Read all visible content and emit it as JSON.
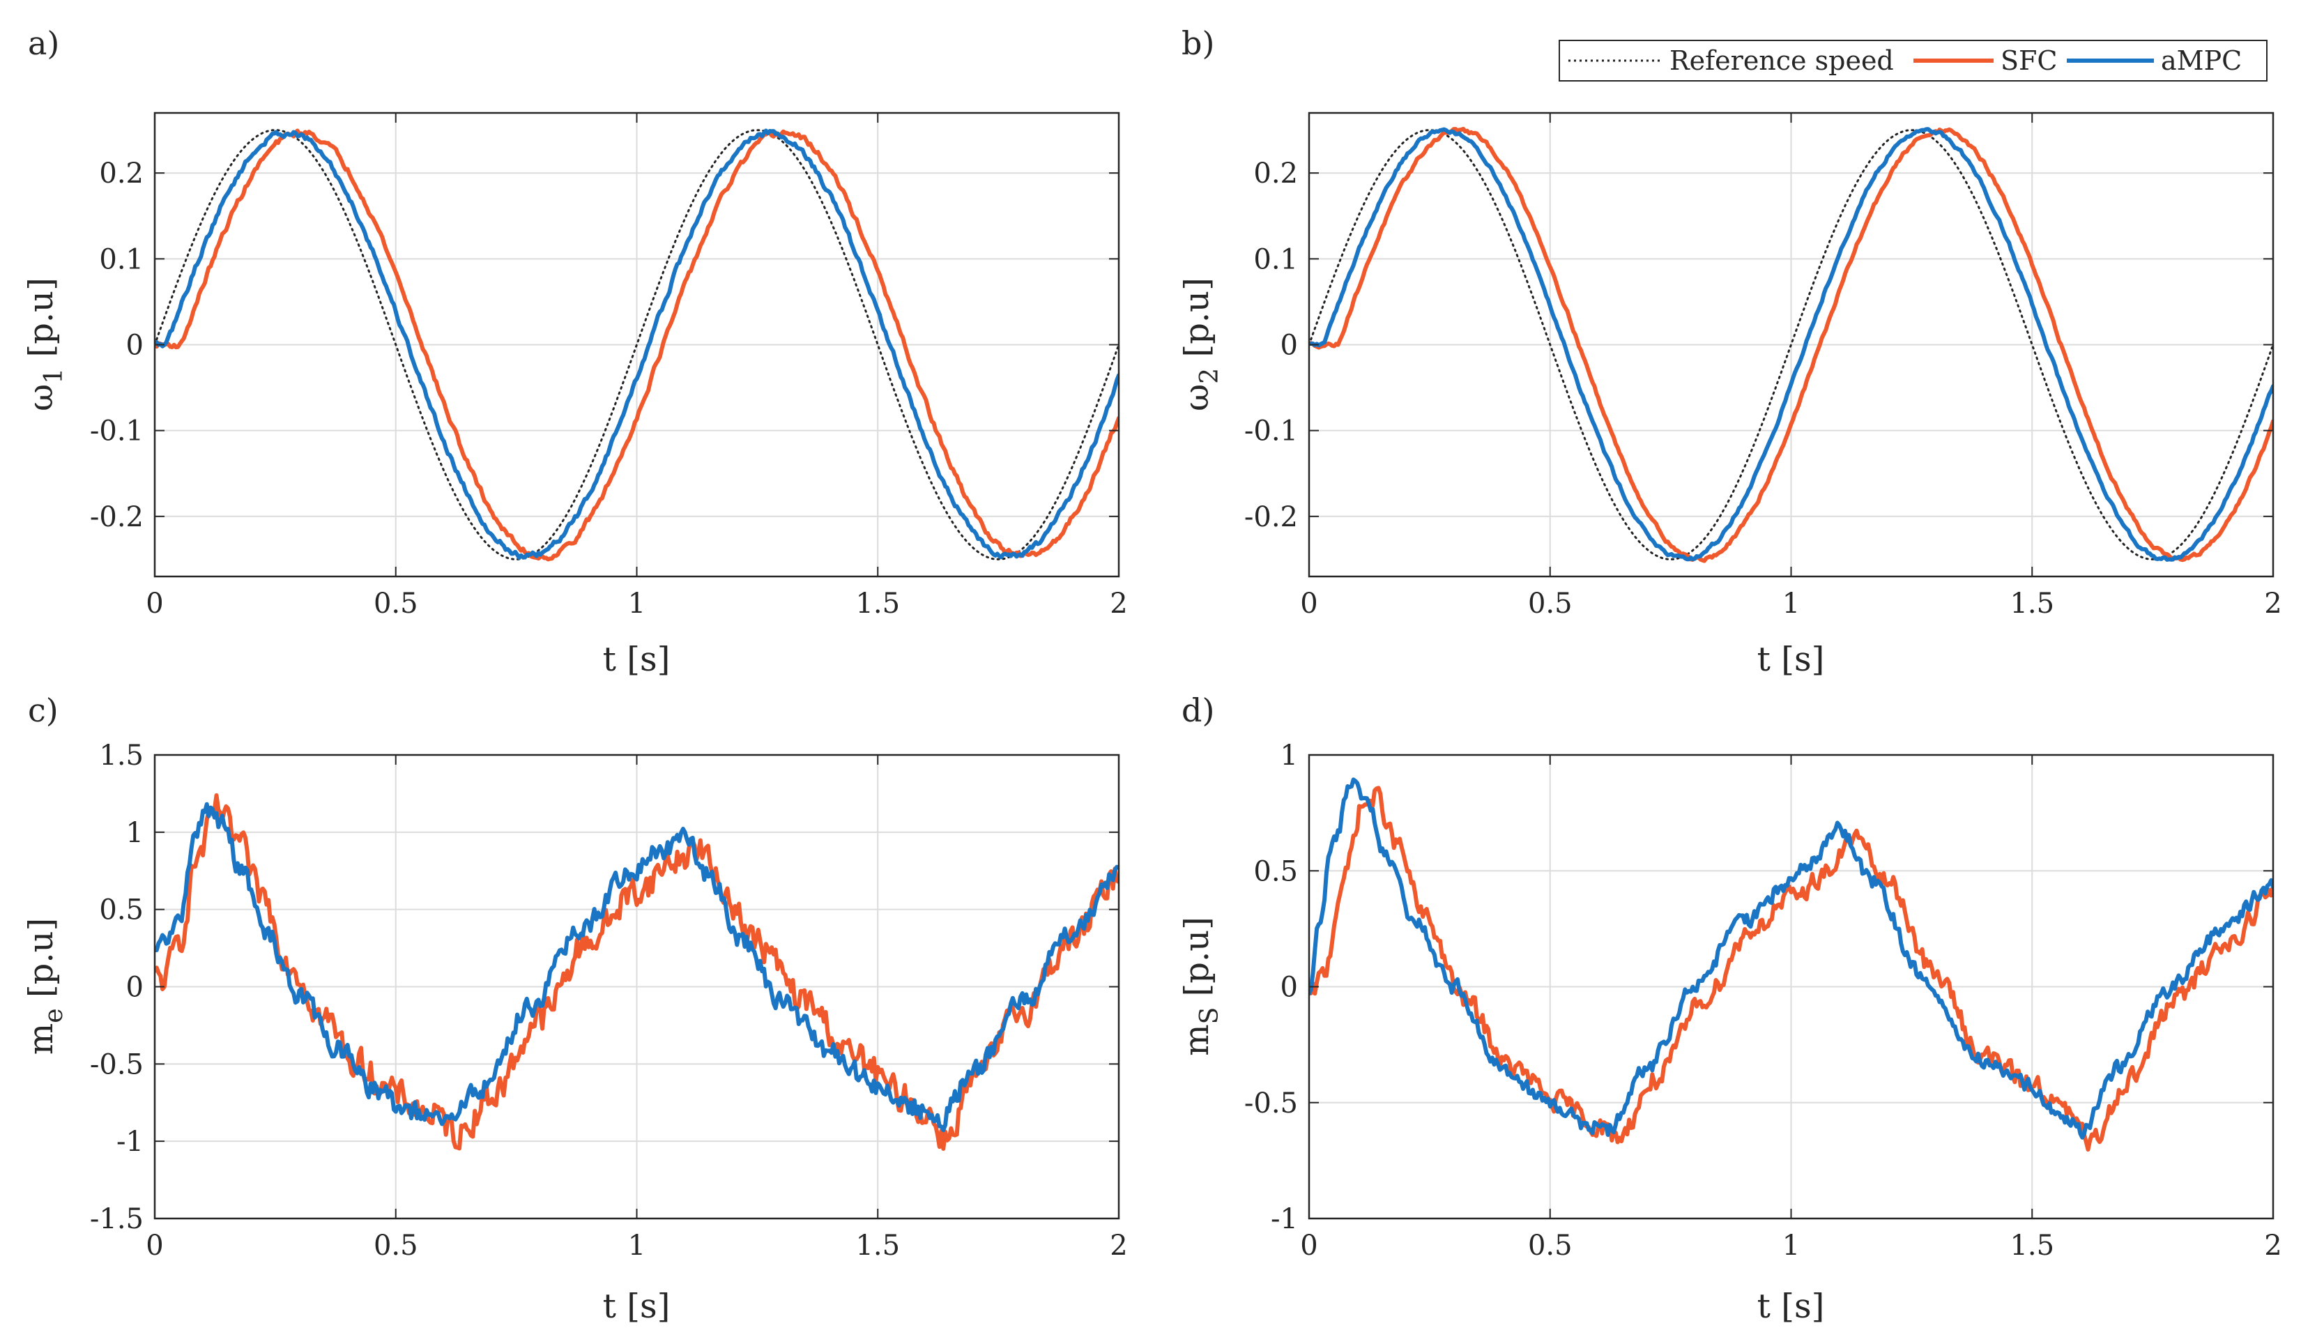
{
  "figure": {
    "legend": {
      "entries": [
        {
          "key": "ref",
          "label": "Reference speed",
          "color": "#222222",
          "style": "dotted"
        },
        {
          "key": "sfc",
          "label": "SFC",
          "color": "#F0592B",
          "style": "solid"
        },
        {
          "key": "ampc",
          "label": "aMPC",
          "color": "#1A76C4",
          "style": "solid"
        }
      ]
    }
  },
  "chart_data": [
    {
      "id": "a",
      "panel_label": "a)",
      "type": "line",
      "xlabel": "t [s]",
      "ylabel_main": "ω",
      "ylabel_sub": "1",
      "ylabel_tail": " [p.u]",
      "xlim": [
        0,
        2
      ],
      "ylim": [
        -0.27,
        0.27
      ],
      "xticks": [
        0,
        0.5,
        1,
        1.5,
        2
      ],
      "xtick_labels": [
        "0",
        "0.5",
        "1",
        "1.5",
        "2"
      ],
      "yticks": [
        -0.2,
        -0.1,
        0,
        0.1,
        0.2
      ],
      "ytick_labels": [
        "-0.2",
        "-0.1",
        "0",
        "0.1",
        "0.2"
      ],
      "grid": true,
      "series": [
        {
          "key": "ref",
          "name": "Reference speed",
          "kind": "sine",
          "amplitude": 0.25,
          "period": 1.0,
          "lag": 0.0,
          "noise": 0.0
        },
        {
          "key": "sfc",
          "name": "SFC",
          "kind": "sine",
          "amplitude": 0.247,
          "period": 1.0,
          "lag": 0.055,
          "noise": 0.003
        },
        {
          "key": "ampc",
          "name": "aMPC",
          "kind": "sine",
          "amplitude": 0.247,
          "period": 1.0,
          "lag": 0.025,
          "noise": 0.003
        }
      ]
    },
    {
      "id": "b",
      "panel_label": "b)",
      "type": "line",
      "xlabel": "t [s]",
      "ylabel_main": "ω",
      "ylabel_sub": "2",
      "ylabel_tail": " [p.u]",
      "xlim": [
        0,
        2
      ],
      "ylim": [
        -0.27,
        0.27
      ],
      "xticks": [
        0,
        0.5,
        1,
        1.5,
        2
      ],
      "xtick_labels": [
        "0",
        "0.5",
        "1",
        "1.5",
        "2"
      ],
      "yticks": [
        -0.2,
        -0.1,
        0,
        0.1,
        0.2
      ],
      "ytick_labels": [
        "-0.2",
        "-0.1",
        "0",
        "0.1",
        "0.2"
      ],
      "grid": true,
      "series": [
        {
          "key": "ref",
          "name": "Reference speed",
          "kind": "sine",
          "amplitude": 0.25,
          "period": 1.0,
          "lag": 0.0,
          "noise": 0.0
        },
        {
          "key": "sfc",
          "name": "SFC",
          "kind": "sine",
          "amplitude": 0.25,
          "period": 1.0,
          "lag": 0.06,
          "noise": 0.002
        },
        {
          "key": "ampc",
          "name": "aMPC",
          "kind": "sine",
          "amplitude": 0.25,
          "period": 1.0,
          "lag": 0.03,
          "noise": 0.002
        }
      ]
    },
    {
      "id": "c",
      "panel_label": "c)",
      "type": "line",
      "xlabel": "t [s]",
      "ylabel_main": "m",
      "ylabel_sub": "e",
      "ylabel_tail": " [p.u]",
      "xlim": [
        0,
        2
      ],
      "ylim": [
        -1.5,
        1.5
      ],
      "xticks": [
        0,
        0.5,
        1,
        1.5,
        2
      ],
      "xtick_labels": [
        "0",
        "0.5",
        "1",
        "1.5",
        "2"
      ],
      "yticks": [
        -1.5,
        -1,
        -0.5,
        0,
        0.5,
        1,
        1.5
      ],
      "ytick_labels": [
        "-1.5",
        "-1",
        "-0.5",
        "0",
        "0.5",
        "1",
        "1.5"
      ],
      "grid": true,
      "series": [
        {
          "key": "sfc",
          "name": "SFC",
          "kind": "points",
          "noise": 0.09,
          "x": [
            0,
            0.02,
            0.05,
            0.09,
            0.13,
            0.17,
            0.22,
            0.28,
            0.35,
            0.42,
            0.5,
            0.57,
            0.63,
            0.7,
            0.8,
            0.9,
            1.0,
            1.08,
            1.13,
            1.18,
            1.25,
            1.35,
            1.45,
            1.55,
            1.6,
            1.64,
            1.7,
            1.8,
            1.9,
            2.0
          ],
          "y": [
            0.05,
            0.05,
            0.3,
            0.85,
            1.15,
            0.95,
            0.6,
            0.15,
            -0.2,
            -0.5,
            -0.7,
            -0.82,
            -0.95,
            -0.7,
            -0.2,
            0.3,
            0.62,
            0.82,
            0.9,
            0.62,
            0.28,
            -0.1,
            -0.45,
            -0.7,
            -0.82,
            -0.98,
            -0.6,
            -0.15,
            0.3,
            0.72
          ]
        },
        {
          "key": "ampc",
          "name": "aMPC",
          "kind": "points",
          "noise": 0.06,
          "x": [
            0,
            0.02,
            0.05,
            0.08,
            0.11,
            0.14,
            0.18,
            0.23,
            0.3,
            0.38,
            0.45,
            0.52,
            0.6,
            0.68,
            0.78,
            0.88,
            0.98,
            1.05,
            1.1,
            1.15,
            1.22,
            1.3,
            1.4,
            1.5,
            1.58,
            1.62,
            1.7,
            1.8,
            1.9,
            2.0
          ],
          "y": [
            0.2,
            0.3,
            0.4,
            0.95,
            1.15,
            1.05,
            0.75,
            0.35,
            -0.05,
            -0.4,
            -0.65,
            -0.8,
            -0.88,
            -0.65,
            -0.12,
            0.35,
            0.72,
            0.88,
            0.95,
            0.72,
            0.3,
            -0.1,
            -0.42,
            -0.65,
            -0.78,
            -0.9,
            -0.55,
            -0.1,
            0.35,
            0.75
          ]
        }
      ]
    },
    {
      "id": "d",
      "panel_label": "d)",
      "type": "line",
      "xlabel": "t [s]",
      "ylabel_main": "m",
      "ylabel_sub": "S",
      "ylabel_tail": " [p.u]",
      "xlim": [
        0,
        2
      ],
      "ylim": [
        -1,
        1
      ],
      "xticks": [
        0,
        0.5,
        1,
        1.5,
        2
      ],
      "xtick_labels": [
        "0",
        "0.5",
        "1",
        "1.5",
        "2"
      ],
      "yticks": [
        -1,
        -0.5,
        0,
        0.5,
        1
      ],
      "ytick_labels": [
        "-1",
        "-0.5",
        "0",
        "0.5",
        "1"
      ],
      "grid": true,
      "series": [
        {
          "key": "sfc",
          "name": "SFC",
          "kind": "points",
          "noise": 0.04,
          "x": [
            0,
            0.03,
            0.07,
            0.11,
            0.14,
            0.18,
            0.24,
            0.32,
            0.42,
            0.52,
            0.6,
            0.64,
            0.72,
            0.82,
            0.92,
            1.0,
            1.08,
            1.13,
            1.2,
            1.3,
            1.4,
            1.5,
            1.58,
            1.62,
            1.7,
            1.8,
            1.9,
            2.0
          ],
          "y": [
            -0.05,
            0.05,
            0.45,
            0.78,
            0.82,
            0.62,
            0.3,
            -0.05,
            -0.35,
            -0.5,
            -0.6,
            -0.65,
            -0.4,
            -0.05,
            0.25,
            0.38,
            0.5,
            0.65,
            0.45,
            0.05,
            -0.3,
            -0.42,
            -0.55,
            -0.68,
            -0.4,
            -0.05,
            0.18,
            0.4
          ]
        },
        {
          "key": "ampc",
          "name": "aMPC",
          "kind": "points",
          "noise": 0.03,
          "x": [
            0,
            0.02,
            0.05,
            0.09,
            0.12,
            0.16,
            0.22,
            0.3,
            0.4,
            0.5,
            0.58,
            0.62,
            0.7,
            0.8,
            0.9,
            0.98,
            1.05,
            1.1,
            1.17,
            1.27,
            1.38,
            1.48,
            1.56,
            1.6,
            1.68,
            1.78,
            1.88,
            2.0
          ],
          "y": [
            -0.05,
            0.3,
            0.62,
            0.88,
            0.8,
            0.55,
            0.28,
            0.0,
            -0.35,
            -0.5,
            -0.6,
            -0.62,
            -0.35,
            0.0,
            0.28,
            0.42,
            0.55,
            0.68,
            0.45,
            0.05,
            -0.3,
            -0.42,
            -0.55,
            -0.62,
            -0.35,
            -0.02,
            0.22,
            0.44
          ]
        }
      ]
    }
  ]
}
